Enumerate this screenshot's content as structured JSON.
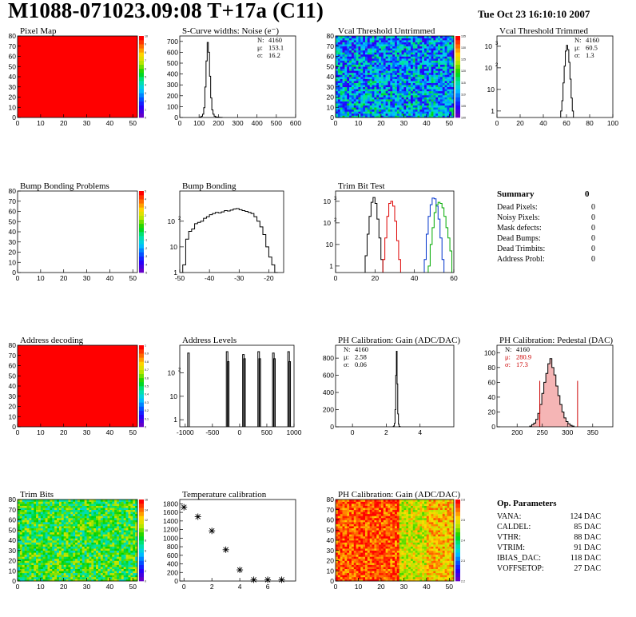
{
  "header": {
    "title": "M1088-071023.09:08 T+17a (C11)",
    "date": "Tue Oct 23 16:10:10 2007"
  },
  "summary": {
    "heading": "Summary",
    "total": "0",
    "items": [
      {
        "label": "Dead Pixels:",
        "value": "0"
      },
      {
        "label": "Noisy Pixels:",
        "value": "0"
      },
      {
        "label": "Mask defects:",
        "value": "0"
      },
      {
        "label": "Dead Bumps:",
        "value": "0"
      },
      {
        "label": "Dead Trimbits:",
        "value": "0"
      },
      {
        "label": "Address Probl:",
        "value": "0"
      }
    ]
  },
  "op_parameters": {
    "heading": "Op. Parameters",
    "items": [
      {
        "label": "VANA:",
        "value": "124 DAC"
      },
      {
        "label": "CALDEL:",
        "value": "85 DAC"
      },
      {
        "label": "VTHR:",
        "value": "88 DAC"
      },
      {
        "label": "VTRIM:",
        "value": "91 DAC"
      },
      {
        "label": "IBIAS_DAC:",
        "value": "118 DAC"
      },
      {
        "label": "VOFFSETOP:",
        "value": "27 DAC"
      }
    ]
  },
  "chart_data": [
    {
      "id": "pixel_map",
      "type": "heatmap",
      "title": "Pixel Map",
      "xlim": [
        0,
        52
      ],
      "ylim": [
        0,
        80
      ],
      "xticks": [
        0,
        10,
        20,
        30,
        40,
        50
      ],
      "yticks": [
        0,
        10,
        20,
        30,
        40,
        50,
        60,
        70,
        80
      ],
      "pattern": "uniform_max",
      "zticks": [
        0,
        1,
        2,
        3,
        4,
        5,
        6,
        7,
        8,
        9,
        10
      ]
    },
    {
      "id": "noise",
      "type": "histogram",
      "title": "S-Curve widths: Noise (e⁻)",
      "xlim": [
        0,
        600
      ],
      "ylim": [
        0,
        750
      ],
      "xticks": [
        0,
        100,
        200,
        300,
        400,
        500,
        600
      ],
      "yticks": [
        0,
        100,
        200,
        300,
        400,
        500,
        600,
        700
      ],
      "ylog": false,
      "stats": [
        {
          "k": "N:",
          "v": "4160"
        },
        {
          "k": "μ:",
          "v": "153.1"
        },
        {
          "k": "σ:",
          "v": "16.2"
        }
      ],
      "series": [
        {
          "color": "#000",
          "x0": 100,
          "dx": 6,
          "counts": [
            2,
            5,
            12,
            30,
            90,
            280,
            520,
            690,
            600,
            380,
            180,
            70,
            30,
            12,
            6,
            4,
            3,
            2,
            1,
            1
          ]
        }
      ]
    },
    {
      "id": "vcal_untrimmed",
      "type": "heatmap",
      "title": "Vcal Threshold Untrimmed",
      "xlim": [
        0,
        52
      ],
      "ylim": [
        0,
        80
      ],
      "xticks": [
        0,
        10,
        20,
        30,
        40,
        50
      ],
      "yticks": [
        0,
        10,
        20,
        30,
        40,
        50,
        60,
        70,
        80
      ],
      "pattern": "noise_mid",
      "zticks": [
        100,
        105,
        110,
        115,
        120,
        125,
        130,
        135
      ]
    },
    {
      "id": "vcal_trimmed",
      "type": "histogram",
      "title": "Vcal Threshold Trimmed",
      "xlim": [
        0,
        100
      ],
      "ylim": [
        0.5,
        3000
      ],
      "xticks": [
        0,
        20,
        40,
        60,
        80,
        100
      ],
      "ylog": true,
      "ydecades": [
        1,
        10,
        100,
        1000
      ],
      "stats": [
        {
          "k": "N:",
          "v": "4160"
        },
        {
          "k": "μ:",
          "v": "60.5"
        },
        {
          "k": "σ:",
          "v": "1.3"
        }
      ],
      "series": [
        {
          "color": "#000",
          "x0": 55,
          "dx": 1,
          "counts": [
            1,
            3,
            20,
            120,
            600,
            1100,
            700,
            180,
            30,
            4,
            1
          ]
        }
      ]
    },
    {
      "id": "bump_problems",
      "type": "heatmap",
      "title": "Bump Bonding Problems",
      "xlim": [
        0,
        52
      ],
      "ylim": [
        0,
        80
      ],
      "xticks": [
        0,
        10,
        20,
        30,
        40,
        50
      ],
      "yticks": [
        0,
        10,
        20,
        30,
        40,
        50,
        60,
        70,
        80
      ],
      "pattern": "empty",
      "zticks": [
        -5,
        -4,
        -3,
        -2,
        -1,
        0,
        1,
        2,
        3,
        4,
        5
      ]
    },
    {
      "id": "bump_bonding",
      "type": "histogram",
      "title": "Bump Bonding",
      "xlim": [
        -50,
        -15
      ],
      "ylim": [
        1,
        1500
      ],
      "xticks": [
        -50,
        -40,
        -30,
        -20
      ],
      "ylog": true,
      "ydecades": [
        1,
        10,
        100
      ],
      "series": [
        {
          "color": "#000",
          "x0": -49,
          "dx": 1,
          "counts": [
            2,
            20,
            40,
            50,
            80,
            90,
            100,
            130,
            150,
            180,
            200,
            220,
            210,
            230,
            260,
            250,
            270,
            300,
            310,
            280,
            260,
            240,
            220,
            200,
            150,
            100,
            60,
            30,
            10,
            4,
            2,
            1
          ]
        }
      ]
    },
    {
      "id": "trim_bit_test",
      "type": "histogram",
      "title": "Trim Bit Test",
      "xlim": [
        0,
        60
      ],
      "ylim": [
        0.5,
        3000
      ],
      "xticks": [
        0,
        20,
        40,
        60
      ],
      "ylog": true,
      "ydecades": [
        1,
        10,
        100,
        1000
      ],
      "series": [
        {
          "color": "#000",
          "x0": 15,
          "dx": 1,
          "counts": [
            3,
            30,
            200,
            900,
            1500,
            800,
            150,
            20,
            2
          ]
        },
        {
          "color": "#d00",
          "x0": 24,
          "dx": 1,
          "counts": [
            2,
            20,
            200,
            800,
            1000,
            600,
            120,
            15,
            2
          ]
        },
        {
          "color": "#0033cc",
          "x0": 45,
          "dx": 1,
          "counts": [
            2,
            30,
            200,
            700,
            1400,
            1300,
            600,
            150,
            20,
            2
          ]
        },
        {
          "color": "#00aa00",
          "x0": 47,
          "dx": 1,
          "counts": [
            1,
            10,
            60,
            300,
            700,
            900,
            800,
            500,
            200,
            60,
            20,
            5
          ]
        }
      ]
    },
    {
      "id": "address_decoding",
      "type": "heatmap",
      "title": "Address decoding",
      "xlim": [
        0,
        52
      ],
      "ylim": [
        0,
        80
      ],
      "xticks": [
        0,
        10,
        20,
        30,
        40,
        50
      ],
      "yticks": [
        0,
        10,
        20,
        30,
        40,
        50,
        60,
        70,
        80
      ],
      "pattern": "uniform_max",
      "zticks": [
        0,
        0.1,
        0.2,
        0.3,
        0.4,
        0.5,
        0.6,
        0.7,
        0.8,
        0.9,
        1
      ]
    },
    {
      "id": "address_levels",
      "type": "histogram",
      "title": "Address Levels",
      "xlim": [
        -1100,
        1000
      ],
      "ylim": [
        0.5,
        1500
      ],
      "xticks": [
        -1000,
        -500,
        0,
        500,
        1000
      ],
      "ylog": true,
      "ydecades": [
        1,
        10,
        100
      ],
      "series": [
        {
          "color": "#000",
          "spikes": [
            [
              -940,
              700
            ],
            [
              -230,
              800
            ],
            [
              -210,
              300
            ],
            [
              70,
              600
            ],
            [
              90,
              400
            ],
            [
              350,
              800
            ],
            [
              370,
              400
            ],
            [
              620,
              700
            ],
            [
              640,
              400
            ],
            [
              900,
              800
            ],
            [
              920,
              300
            ]
          ]
        }
      ]
    },
    {
      "id": "ph_gain",
      "type": "histogram",
      "title": "PH Calibration: Gain (ADC/DAC)",
      "xlim": [
        -1,
        6
      ],
      "ylim": [
        0,
        950
      ],
      "xticks": [
        0,
        2,
        4
      ],
      "yticks": [
        0,
        200,
        400,
        600,
        800
      ],
      "ylog": false,
      "stats": [
        {
          "k": "N:",
          "v": "4160"
        },
        {
          "k": "μ:",
          "v": "2.58"
        },
        {
          "k": "σ:",
          "v": "0.06"
        }
      ],
      "series": [
        {
          "color": "#000",
          "x0": 2.4,
          "dx": 0.04,
          "counts": [
            2,
            10,
            40,
            200,
            600,
            880,
            500,
            150,
            30,
            5,
            1
          ]
        }
      ]
    },
    {
      "id": "ph_pedestal",
      "type": "histogram",
      "title": "PH Calibration: Pedestal (DAC)",
      "xlim": [
        160,
        390
      ],
      "ylim": [
        0,
        110
      ],
      "xticks": [
        200,
        250,
        300,
        350
      ],
      "yticks": [
        0,
        20,
        40,
        60,
        80,
        100
      ],
      "ylog": false,
      "stats": [
        {
          "k": "N:",
          "v": "4160"
        },
        {
          "k": "μ:",
          "v": "280.9",
          "color": "#cc0000"
        },
        {
          "k": "σ:",
          "v": "17.3",
          "color": "#cc0000"
        }
      ],
      "fit_lines": [
        245,
        320
      ],
      "series": [
        {
          "color": "#000",
          "x0": 225,
          "dx": 4,
          "counts": [
            1,
            3,
            5,
            10,
            18,
            30,
            45,
            60,
            72,
            85,
            92,
            80,
            70,
            55,
            42,
            30,
            20,
            12,
            7,
            4,
            2,
            1
          ]
        }
      ]
    },
    {
      "id": "trim_bits",
      "type": "heatmap",
      "title": "Trim Bits",
      "xlim": [
        0,
        52
      ],
      "ylim": [
        0,
        80
      ],
      "xticks": [
        0,
        10,
        20,
        30,
        40,
        50
      ],
      "yticks": [
        0,
        10,
        20,
        30,
        40,
        50,
        60,
        70,
        80
      ],
      "pattern": "noise_high",
      "zticks": [
        0,
        2,
        4,
        6,
        8,
        10,
        12,
        14,
        16
      ]
    },
    {
      "id": "temperature",
      "type": "scatter",
      "title": "Temperature calibration",
      "xlim": [
        -0.3,
        8
      ],
      "ylim": [
        0,
        1900
      ],
      "xticks": [
        0,
        2,
        4,
        6
      ],
      "yticks": [
        0,
        200,
        400,
        600,
        800,
        1000,
        1200,
        1400,
        1600,
        1800
      ],
      "x": [
        0,
        1,
        2,
        3,
        4,
        5,
        6,
        7
      ],
      "y": [
        1720,
        1500,
        1170,
        730,
        260,
        30,
        30,
        30
      ]
    },
    {
      "id": "ph_gain_map",
      "type": "heatmap",
      "title": "PH Calibration: Gain (ADC/DAC)",
      "xlim": [
        0,
        52
      ],
      "ylim": [
        0,
        80
      ],
      "xticks": [
        0,
        10,
        20,
        30,
        40,
        50
      ],
      "yticks": [
        0,
        10,
        20,
        30,
        40,
        50,
        60,
        70,
        80
      ],
      "pattern": "gain_map",
      "zticks": [
        2.2,
        2.3,
        2.4,
        2.5,
        2.6
      ]
    }
  ]
}
